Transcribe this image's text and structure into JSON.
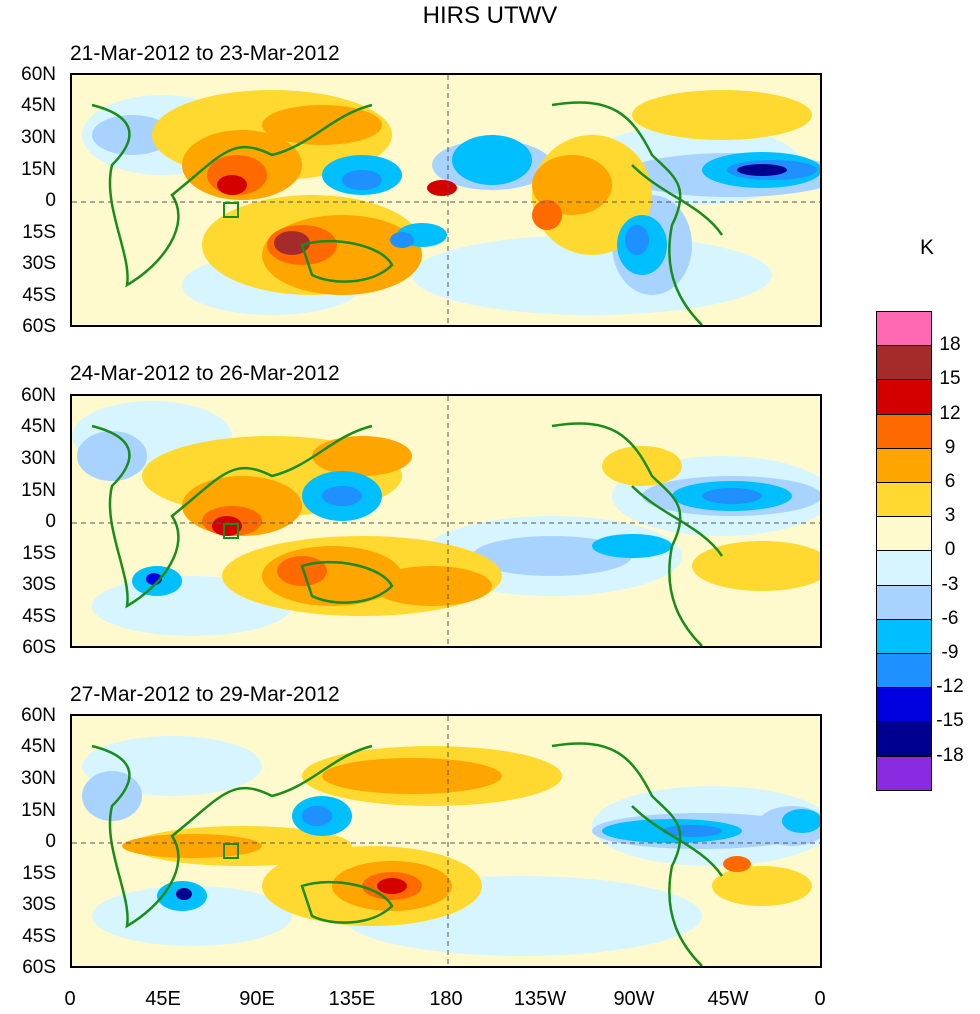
{
  "figure": {
    "title": "HIRS UTWV",
    "units": "K",
    "panels": [
      {
        "title": "21-Mar-2012 to 23-Mar-2012"
      },
      {
        "title": "24-Mar-2012 to 26-Mar-2012"
      },
      {
        "title": "27-Mar-2012 to 29-Mar-2012"
      }
    ],
    "lat_labels": [
      "60N",
      "45N",
      "30N",
      "15N",
      "0",
      "15S",
      "30S",
      "45S",
      "60S"
    ],
    "lon_labels": [
      "0",
      "45E",
      "90E",
      "135E",
      "180",
      "135W",
      "90W",
      "45W",
      "0"
    ],
    "legend": {
      "labels": [
        "18",
        "15",
        "12",
        "9",
        "6",
        "3",
        "0",
        "-3",
        "-6",
        "-9",
        "-12",
        "-15",
        "-18"
      ],
      "colors": [
        "#ff69b4",
        "#a52a2a",
        "#d40000",
        "#ff6a00",
        "#ffa500",
        "#ffd92f",
        "#fffacd",
        "#d6f5ff",
        "#a9d3ff",
        "#00bfff",
        "#1e90ff",
        "#0000e0",
        "#000090",
        "#8a2be2"
      ]
    }
  }
}
